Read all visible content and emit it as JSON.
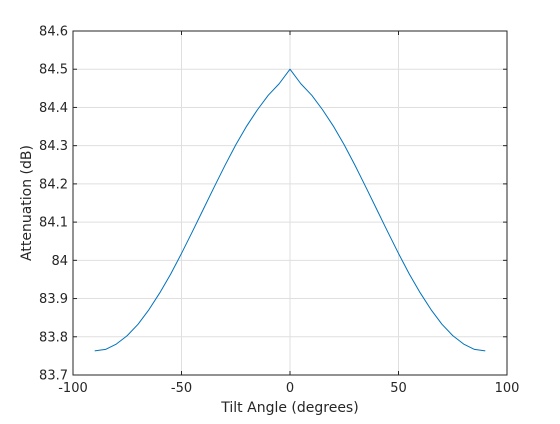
{
  "chart_data": {
    "type": "line",
    "title": "",
    "xlabel": "Tilt Angle (degrees)",
    "ylabel": "Attenuation (dB)",
    "xlim": [
      -100,
      100
    ],
    "ylim": [
      83.7,
      84.6
    ],
    "x_ticks": [
      -100,
      -50,
      0,
      50,
      100
    ],
    "x_tick_labels": [
      "-100",
      "-50",
      "0",
      "50",
      "100"
    ],
    "y_ticks": [
      83.7,
      83.8,
      83.9,
      84,
      84.1,
      84.2,
      84.3,
      84.4,
      84.5,
      84.6
    ],
    "y_tick_labels": [
      "83.7",
      "83.8",
      "83.9",
      "84",
      "84.1",
      "84.2",
      "84.3",
      "84.4",
      "84.5",
      "84.6"
    ],
    "grid": true,
    "series": [
      {
        "color": "#0072bd",
        "x": [
          -90,
          -85,
          -80,
          -75,
          -70,
          -65,
          -60,
          -55,
          -50,
          -45,
          -40,
          -35,
          -30,
          -25,
          -20,
          -15,
          -10,
          -5,
          0,
          5,
          10,
          15,
          20,
          25,
          30,
          35,
          40,
          45,
          50,
          55,
          60,
          65,
          70,
          75,
          80,
          85,
          90
        ],
        "y": [
          83.763,
          83.767,
          83.781,
          83.803,
          83.833,
          83.871,
          83.915,
          83.964,
          84.018,
          84.075,
          84.133,
          84.191,
          84.248,
          84.302,
          84.351,
          84.394,
          84.432,
          84.462,
          84.5,
          84.462,
          84.432,
          84.394,
          84.351,
          84.302,
          84.248,
          84.191,
          84.133,
          84.075,
          84.018,
          83.964,
          83.915,
          83.871,
          83.833,
          83.803,
          83.781,
          83.767,
          83.763
        ]
      }
    ]
  }
}
